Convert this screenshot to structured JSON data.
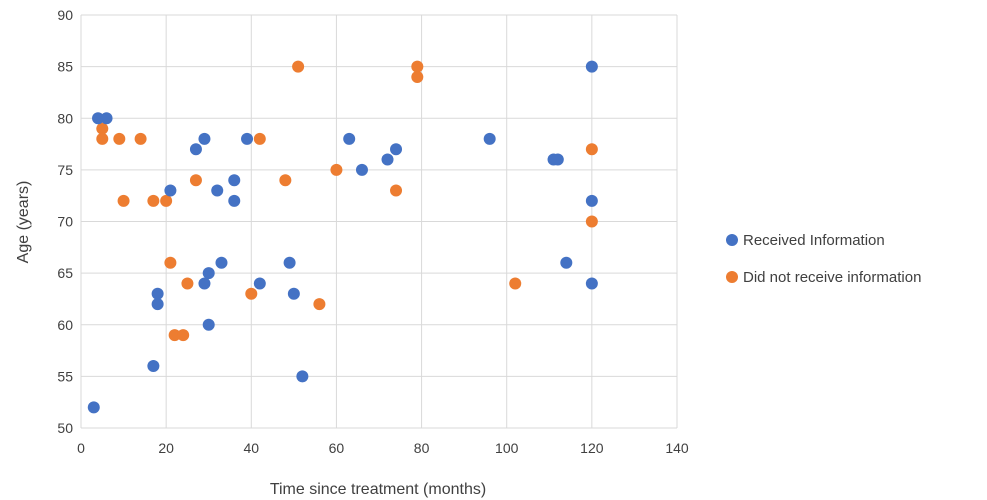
{
  "chart_data": {
    "type": "scatter",
    "xlabel": "Time since treatment (months)",
    "ylabel": "Age (years)",
    "xlim": [
      0,
      140
    ],
    "ylim": [
      50,
      90
    ],
    "xticks": [
      0,
      20,
      40,
      60,
      80,
      100,
      120,
      140
    ],
    "yticks": [
      50,
      55,
      60,
      65,
      70,
      75,
      80,
      85,
      90
    ],
    "grid": "vertical and horizontal",
    "legend_position": "right",
    "series": [
      {
        "name": "Received Information",
        "color": "#4472c4",
        "points": [
          [
            3,
            52
          ],
          [
            4,
            80
          ],
          [
            6,
            80
          ],
          [
            17,
            56
          ],
          [
            18,
            63
          ],
          [
            18,
            62
          ],
          [
            21,
            73
          ],
          [
            27,
            77
          ],
          [
            29,
            78
          ],
          [
            29,
            64
          ],
          [
            30,
            65
          ],
          [
            30,
            60
          ],
          [
            32,
            73
          ],
          [
            33,
            66
          ],
          [
            36,
            74
          ],
          [
            36,
            72
          ],
          [
            39,
            78
          ],
          [
            42,
            64
          ],
          [
            49,
            66
          ],
          [
            50,
            63
          ],
          [
            52,
            55
          ],
          [
            63,
            78
          ],
          [
            66,
            75
          ],
          [
            72,
            76
          ],
          [
            74,
            77
          ],
          [
            96,
            78
          ],
          [
            111,
            76
          ],
          [
            112,
            76
          ],
          [
            114,
            66
          ],
          [
            120,
            85
          ],
          [
            120,
            72
          ],
          [
            120,
            64
          ]
        ]
      },
      {
        "name": "Did not receive information",
        "color": "#ed7d31",
        "points": [
          [
            5,
            79
          ],
          [
            5,
            78
          ],
          [
            9,
            78
          ],
          [
            10,
            72
          ],
          [
            14,
            78
          ],
          [
            17,
            72
          ],
          [
            20,
            72
          ],
          [
            21,
            66
          ],
          [
            22,
            59
          ],
          [
            24,
            59
          ],
          [
            25,
            64
          ],
          [
            27,
            74
          ],
          [
            40,
            63
          ],
          [
            42,
            78
          ],
          [
            48,
            74
          ],
          [
            51,
            85
          ],
          [
            56,
            62
          ],
          [
            60,
            75
          ],
          [
            74,
            73
          ],
          [
            79,
            85
          ],
          [
            79,
            84
          ],
          [
            102,
            64
          ],
          [
            120,
            77
          ],
          [
            120,
            70
          ]
        ]
      }
    ]
  }
}
